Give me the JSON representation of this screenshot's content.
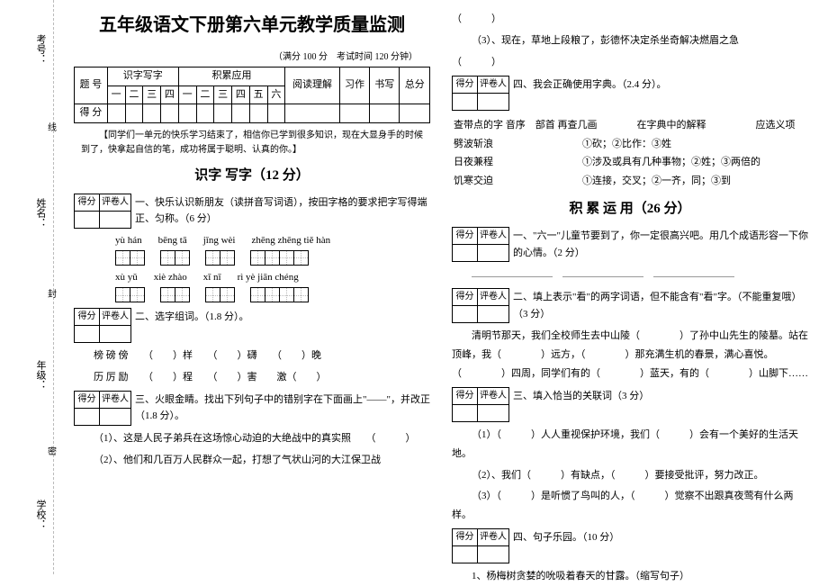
{
  "title": "五年级语文下册第六单元教学质量监测",
  "meta": "（满分 100 分　考试时间 120 分钟）",
  "margin": {
    "l1": "考号：",
    "l2": "姓名：",
    "l3": "年级：",
    "l4": "学校：",
    "s1": "线",
    "s2": "封",
    "s3": "密"
  },
  "scoretable": {
    "h1": "题 号",
    "h2": "识字写字",
    "h3": "积累应用",
    "h4": "阅读理解",
    "h5": "习作",
    "h6": "书写",
    "h7": "总分",
    "r2": "得 分",
    "n": [
      "一",
      "二",
      "三",
      "四",
      "一",
      "二",
      "三",
      "四",
      "五",
      "六"
    ]
  },
  "note": "【同学们一单元的快乐学习结束了，相信你已学到很多知识，现在大显身手的时候到了，快拿起自信的笔，成功将属于聪明、认真的你。】",
  "sec1": "识字 写字（12 分）",
  "sec2": "积 累 运 用（26 分）",
  "sb": {
    "a": "得分",
    "b": "评卷人"
  },
  "q1_1": "一、快乐认识新朋友（读拼音写词语），按田字格的要求把字写得端正、匀称。（6 分）",
  "py1": [
    "yù  hán",
    "bēng  tā",
    "jǐng  wèi",
    "zhēng zhēng tiě  hàn"
  ],
  "py2": [
    "xù  yǔ",
    "xiè  zhào",
    "xī   nī",
    "rì   yè  jiān  chéng"
  ],
  "q1_2": "二、选字组词。（1.8 分）。",
  "q1_2a": "榜 磅 傍　　（　　）样　　（　　）礴　　（　　）晚",
  "q1_2b": "历 厉 励　　（　　）程　　（　　）害　　激（　　）",
  "q1_3": "三、火眼金睛。找出下列句子中的错别字在下面画上\"——\"，并改正（1.8 分）。",
  "q1_3_1": "（1）、这是人民子弟兵在这场惊心动迫的大绝战中的真实照",
  "q1_3_2": "（2）、他们和几百万人民群众一起，打想了气状山河的大江保卫战",
  "q1_3_3": "（3）、现在，草地上段粮了，彭德怀决定杀坐奇解决燃眉之急",
  "q1_4": "四、我会正确使用字典。（2.4 分）。",
  "dict": {
    "hdr": "查带点的字 音序　部首 再查几画　　　　在字典中的解释　　　　　应选义项",
    "r1": "劈波斩浪　　　　　　　　　①砍；②比作：③姓",
    "r2": "日夜兼程　　　　　　　　　①涉及或具有几种事物；②姓；③两倍的",
    "r3": "饥寒交迫　　　　　　　　　①连接，交叉；②一齐，同；③到"
  },
  "q2_1": "一、\"六一\"儿童节要到了，你一定很高兴吧。用几个成语形容一下你的心情。（2 分）",
  "q2_2": "二、填上表示\"看\"的两字词语，但不能含有\"看\"字。（不能重复哦）（3 分）",
  "q2_2t": "清明节那天，我们全校师生去中山陵（　　　　）了孙中山先生的陵墓。站在顶峰，我（　　　　）远方，（　　　　）那充满生机的春景，满心喜悦。（　　　　）四周，同学们有的（　　　　）蓝天，有的（　　　　）山脚下……",
  "q2_3": "三、填入恰当的关联词（3 分）",
  "q2_3_1": "（1）（　　　）人人重视保护环境，我们（　　　）会有一个美好的生活天地。",
  "q2_3_2": "（2）、我们（　　　）有缺点，（　　　）要接受批评，努力改正。",
  "q2_3_3": "（3）（　　　）是听惯了鸟叫的人，（　　　）觉察不出跟真夜莺有什么两样。",
  "q2_4": "四、句子乐园。（10 分）",
  "q2_4_1": "1、杨梅树贪婪的吮吸着春天的甘露。（缩写句子）"
}
